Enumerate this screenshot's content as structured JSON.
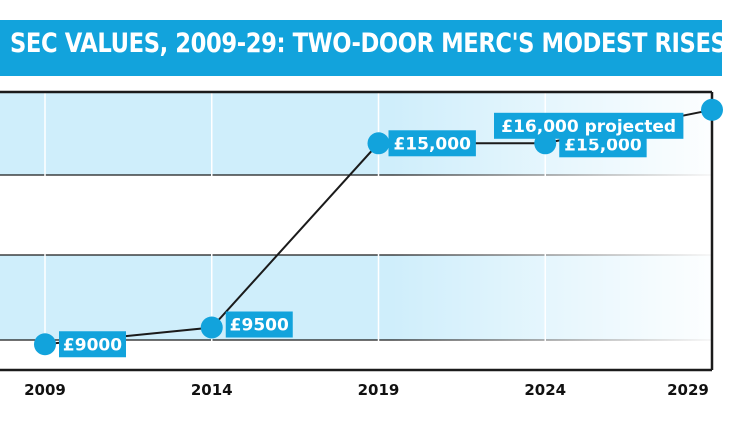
{
  "title": "SEC VALUES, 2009-29: TWO-DOOR MERC'S MODEST RISES",
  "colors": {
    "accent": "#12a3dc",
    "band_light": "#cfeefb",
    "band_mid": "#b5e4f8",
    "line": "#1b1b1b",
    "label_text": "#ffffff"
  },
  "chart_data": {
    "type": "line",
    "title": "SEC VALUES, 2009-29: TWO-DOOR MERC'S MODEST RISES",
    "xlabel": "",
    "ylabel": "",
    "x_ticks": [
      "2009",
      "2014",
      "2019",
      "2024",
      "2029"
    ],
    "xlim": [
      2009,
      2029
    ],
    "ylim": [
      8500,
      16800
    ],
    "grid": "horizontal bands",
    "series": [
      {
        "points": [
          {
            "x": 2009,
            "y": 9000,
            "label": "£9000"
          },
          {
            "x": 2014,
            "y": 9500,
            "label": "£9500"
          },
          {
            "x": 2019,
            "y": 15000,
            "label": "£15,000"
          },
          {
            "x": 2024,
            "y": 15000,
            "label": "£15,000"
          },
          {
            "x": 2029,
            "y": 16000,
            "label": "£16,000 projected"
          }
        ]
      }
    ]
  }
}
